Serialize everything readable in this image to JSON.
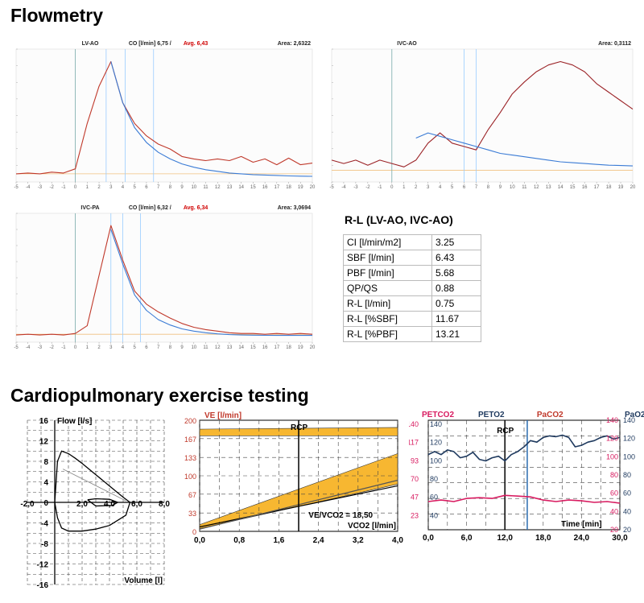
{
  "titles": {
    "flowmetry": "Flowmetry",
    "cpet": "Cardiopulmonary exercise testing"
  },
  "chart_data": [
    {
      "type": "line",
      "panel": "LV-AO",
      "header": {
        "name": "LV-AO",
        "co_label": "CO [l/min] 6,75",
        "avg_label": "Avg. 6,43",
        "area": "Area: 2,6322"
      },
      "x": [
        -5,
        -4,
        -3,
        -2,
        -1,
        0,
        1,
        2,
        3,
        4,
        5,
        6,
        7,
        8,
        9,
        10,
        11,
        12,
        13,
        14,
        15,
        16,
        17,
        18,
        19,
        20
      ],
      "series": [
        {
          "values": [
            0.4,
            0.5,
            0.4,
            0.6,
            0.5,
            1.0,
            6.5,
            11,
            14,
            9,
            6.5,
            5,
            4,
            3.4,
            2.5,
            2.2,
            2.0,
            2.2,
            2.0,
            2.5,
            1.8,
            2.2,
            1.5,
            2.3,
            1.5,
            1.7
          ],
          "color": "#c0392b"
        },
        {
          "values": [
            null,
            null,
            null,
            null,
            null,
            null,
            null,
            null,
            14,
            9,
            6,
            4.2,
            3.0,
            2.2,
            1.6,
            1.2,
            0.9,
            0.7,
            0.5,
            0.4,
            0.3,
            0.25,
            0.2,
            0.15,
            0.12,
            0.1
          ],
          "color": "#3a7bd5"
        }
      ],
      "vlines": [
        0,
        2.6,
        4.2,
        6.6
      ]
    },
    {
      "type": "line",
      "panel": "IVC-AO",
      "header": {
        "name": "IVC-AO",
        "co_label": "",
        "avg_label": "",
        "area": "Area: 0,3112"
      },
      "x": [
        -5,
        -4,
        -3,
        -2,
        -1,
        0,
        1,
        2,
        3,
        4,
        5,
        6,
        7,
        8,
        9,
        10,
        11,
        12,
        13,
        14,
        15,
        16,
        17,
        18,
        19,
        20
      ],
      "series": [
        {
          "values": [
            1.0,
            0.8,
            1.0,
            0.7,
            1.0,
            0.8,
            0.6,
            1.0,
            2.0,
            2.6,
            2.0,
            1.8,
            1.6,
            2.8,
            3.8,
            4.9,
            5.6,
            6.2,
            6.6,
            6.8,
            6.6,
            6.2,
            5.5,
            5.0,
            4.5,
            4.0
          ],
          "color": "#9b2226"
        },
        {
          "values": [
            null,
            null,
            null,
            null,
            null,
            null,
            null,
            2.3,
            2.6,
            2.4,
            2.2,
            2.0,
            1.8,
            1.6,
            1.4,
            1.3,
            1.2,
            1.1,
            1.0,
            0.9,
            0.85,
            0.8,
            0.75,
            0.7,
            0.68,
            0.66
          ],
          "color": "#3a7bd5"
        }
      ],
      "vlines": [
        0,
        6,
        7
      ]
    },
    {
      "type": "line",
      "panel": "IVC-PA",
      "header": {
        "name": "IVC-PA",
        "co_label": "CO [l/min] 6,32",
        "avg_label": "Avg. 6,34",
        "area": "Area: 3,0694"
      },
      "x": [
        -5,
        -4,
        -3,
        -2,
        -1,
        0,
        1,
        2,
        3,
        4,
        5,
        6,
        7,
        8,
        9,
        10,
        11,
        12,
        13,
        14,
        15,
        16,
        17,
        18,
        19,
        20
      ],
      "series": [
        {
          "values": [
            0.3,
            0.4,
            0.3,
            0.4,
            0.3,
            0.5,
            1.5,
            8,
            14.5,
            10,
            6,
            4.3,
            3.3,
            2.5,
            1.8,
            1.3,
            1.0,
            0.8,
            0.6,
            0.5,
            0.5,
            0.4,
            0.5,
            0.4,
            0.5,
            0.4
          ],
          "color": "#c0392b"
        },
        {
          "values": [
            null,
            null,
            null,
            null,
            null,
            null,
            null,
            null,
            14,
            9.5,
            5.5,
            3.5,
            2.3,
            1.6,
            1.1,
            0.8,
            0.6,
            0.45,
            0.35,
            0.3,
            0.28,
            0.26,
            0.25,
            0.25,
            0.25,
            0.25
          ],
          "color": "#3a7bd5"
        }
      ],
      "vlines": [
        0,
        3,
        4,
        5.5
      ]
    },
    {
      "type": "line",
      "panel": "Flow-Volume",
      "xlabel": "Volume [l]",
      "ylabel": "Flow [l/s]",
      "xticks": [
        "-2,0",
        "2,0",
        "4,0",
        "6,0",
        "8,0"
      ],
      "yticks": [
        "16",
        "12",
        "8",
        "4",
        "0",
        "-4",
        "-8",
        "-12",
        "-16"
      ],
      "xlim": [
        -2,
        8
      ],
      "ylim": [
        -16,
        16
      ],
      "series": [
        {
          "name": "",
          "x": [
            0,
            0.1,
            0.2,
            0.5,
            1,
            1.5,
            2,
            3,
            4,
            5,
            5.5,
            5.2,
            4,
            3,
            2,
            1,
            0.5,
            0.2,
            0
          ],
          "y": [
            0,
            4,
            8,
            10,
            9.5,
            8.6,
            7.6,
            5.4,
            3.2,
            1.0,
            0,
            -2.5,
            -4.5,
            -5.2,
            -5.6,
            -5.6,
            -5.0,
            -3.0,
            0
          ]
        },
        {
          "name": "",
          "x": [
            2.4,
            3,
            4,
            4.6,
            4.2,
            3,
            2.4
          ],
          "y": [
            0.5,
            0.7,
            0.6,
            0,
            -0.6,
            -0.7,
            0.5
          ]
        },
        {
          "name": "",
          "x": [
            0.6,
            5.2
          ],
          "y": [
            6.5,
            0.3
          ]
        }
      ]
    },
    {
      "type": "line",
      "panel": "VE-VCO2",
      "title": "VE [l/min]",
      "xlabel": "VCO2 [l/min]",
      "annotation": "VE/VCO2 = 18,50",
      "marker": "RCP",
      "xticks": [
        "0,0",
        "0,8",
        "1,6",
        "2,4",
        "3,2",
        "4,0"
      ],
      "yticks": [
        "200",
        "167",
        "133",
        "100",
        "67",
        "33",
        "0"
      ],
      "xlim": [
        0,
        4
      ],
      "ylim": [
        0,
        200
      ],
      "rcp_x": 2.0,
      "series": [
        {
          "name": "",
          "x": [
            0,
            4
          ],
          "y": [
            8,
            82
          ]
        },
        {
          "name": "",
          "x": [
            0,
            4
          ],
          "y": [
            4,
            92
          ]
        }
      ],
      "bands": [
        {
          "x": [
            0,
            4
          ],
          "low": [
            172,
            172
          ],
          "high": [
            184,
            187
          ]
        },
        {
          "x": [
            0,
            4
          ],
          "low": [
            5,
            85
          ],
          "high": [
            12,
            140
          ]
        }
      ]
    },
    {
      "type": "line",
      "panel": "Gas-Time",
      "xlabel": "Time [min]",
      "left_labels": [
        "PETCO2",
        "PETO2"
      ],
      "right_labels": [
        "PaCO2",
        "PaO2"
      ],
      "marker": "RCP",
      "xticks": [
        "0,0",
        "6,0",
        "12,0",
        "18,0",
        "24,0",
        "30,0"
      ],
      "yticks_left_pink": [
        "140",
        "117",
        "93",
        "70",
        "47",
        "23"
      ],
      "yticks_left_navy": [
        "140",
        "120",
        "100",
        "80",
        "60",
        "40"
      ],
      "yticks_right_pink": [
        "140",
        "120",
        "100",
        "80",
        "60",
        "40",
        "20"
      ],
      "yticks_right_navy": [
        "140",
        "120",
        "100",
        "80",
        "60",
        "40",
        "20"
      ],
      "xlim": [
        0,
        30
      ],
      "ylim": [
        0,
        140
      ],
      "rcp_x": 12.0,
      "vlines": [
        15.5
      ],
      "series": [
        {
          "name": "PETO2",
          "color": "#1f3a5f",
          "x": [
            0,
            1,
            2,
            3,
            4,
            5,
            6,
            7,
            8,
            9,
            10,
            11,
            12,
            13,
            14,
            15,
            16,
            17,
            18,
            19,
            20,
            21,
            22,
            23,
            24,
            25,
            26,
            27,
            28,
            29,
            30
          ],
          "y": [
            96,
            100,
            96,
            102,
            100,
            92,
            94,
            99,
            90,
            88,
            92,
            94,
            88,
            96,
            100,
            106,
            114,
            112,
            118,
            120,
            119,
            121,
            118,
            106,
            108,
            112,
            114,
            118,
            120,
            116,
            118
          ]
        },
        {
          "name": "PETCO2",
          "color": "#d81b60",
          "x": [
            0,
            2,
            4,
            6,
            8,
            10,
            12,
            14,
            16,
            18,
            20,
            22,
            24,
            26,
            28,
            30
          ],
          "y": [
            36,
            38,
            36,
            40,
            41,
            40,
            44,
            43,
            42,
            38,
            36,
            38,
            37,
            35,
            36,
            34
          ]
        }
      ]
    }
  ],
  "rl_table": {
    "title": "R-L (LV-AO, IVC-AO)",
    "rows": [
      {
        "k": "CI [l/min/m2]",
        "v": "3.25"
      },
      {
        "k": "SBF [l/min]",
        "v": "6.43"
      },
      {
        "k": "PBF [l/min]",
        "v": "5.68"
      },
      {
        "k": "QP/QS",
        "v": "0.88"
      },
      {
        "k": "R-L [l/min]",
        "v": "0.75"
      },
      {
        "k": "R-L [%SBF]",
        "v": "11.67"
      },
      {
        "k": "R-L [%PBF]",
        "v": "13.21"
      }
    ]
  }
}
